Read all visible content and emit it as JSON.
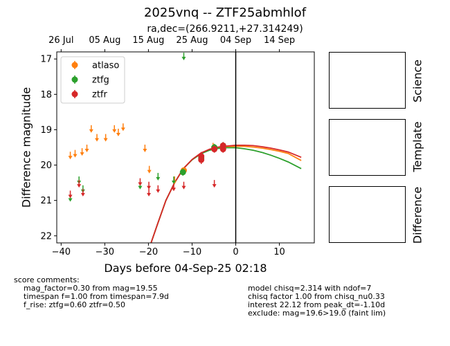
{
  "chart_data": {
    "type": "scatter",
    "title": "2025vnq -- ZTF25abmhlof",
    "subtitle": "ra,dec=(266.9211,+27.314249)",
    "xlabel": "Days before 04-Sep-25 02:18",
    "ylabel": "Difference magnitude",
    "xlim": [
      -41,
      18
    ],
    "ylim": [
      22.2,
      16.8
    ],
    "y_inverted": true,
    "x_ticks": [
      -40,
      -30,
      -20,
      -10,
      0,
      10
    ],
    "y_ticks": [
      17,
      18,
      19,
      20,
      21,
      22
    ],
    "top_axis": {
      "ticks": [
        {
          "x": -40,
          "label": "26 Jul"
        },
        {
          "x": -30,
          "label": "05 Aug"
        },
        {
          "x": -20,
          "label": "15 Aug"
        },
        {
          "x": -10,
          "label": "25 Aug"
        },
        {
          "x": 0,
          "label": "04 Sep"
        },
        {
          "x": 10,
          "label": "14 Sep"
        }
      ]
    },
    "vertical_line_x": 0,
    "legend": {
      "position": "top-left"
    },
    "colors": {
      "atlaso": "#ff7f0e",
      "ztfg": "#2ca02c",
      "ztfr": "#d62728"
    },
    "series": [
      {
        "name": "atlaso",
        "upper_limits": [
          [
            -37.9,
            19.7
          ],
          [
            -36.8,
            19.65
          ],
          [
            -35.2,
            19.6
          ],
          [
            -34.1,
            19.5
          ],
          [
            -33.1,
            18.95
          ],
          [
            -31.8,
            19.2
          ],
          [
            -29.8,
            19.2
          ],
          [
            -27.8,
            18.95
          ],
          [
            -26.9,
            19.05
          ],
          [
            -25.8,
            18.9
          ],
          [
            -20.8,
            19.5
          ],
          [
            -19.8,
            20.1
          ],
          [
            -14.0,
            20.4
          ],
          [
            -5.2,
            19.45
          ]
        ],
        "detections": [
          [
            -11.9,
            20.15,
            0.08
          ]
        ]
      },
      {
        "name": "ztfg",
        "upper_limits": [
          [
            -37.9,
            20.9
          ],
          [
            -35.9,
            20.4
          ],
          [
            -35.0,
            20.65
          ],
          [
            -21.9,
            20.55
          ],
          [
            -17.8,
            20.3
          ],
          [
            -14.2,
            20.4
          ],
          [
            -11.9,
            16.9
          ]
        ],
        "detections": [
          [
            -12.1,
            20.2,
            0.1
          ],
          [
            -7.9,
            19.8,
            0.1
          ],
          [
            -4.9,
            19.5,
            0.1
          ],
          [
            -2.9,
            19.45,
            0.1
          ]
        ]
      },
      {
        "name": "ztfr",
        "upper_limits": [
          [
            -37.9,
            20.8
          ],
          [
            -35.9,
            20.5
          ],
          [
            -35.0,
            20.75
          ],
          [
            -21.9,
            20.45
          ],
          [
            -19.9,
            20.55
          ],
          [
            -19.9,
            20.75
          ],
          [
            -17.8,
            20.65
          ],
          [
            -14.2,
            20.6
          ],
          [
            -11.9,
            20.55
          ],
          [
            -4.9,
            20.5
          ]
        ],
        "detections": [
          [
            -7.9,
            19.75,
            0.12
          ],
          [
            -7.9,
            19.85,
            0.12
          ],
          [
            -4.9,
            19.55,
            0.1
          ],
          [
            -2.9,
            19.45,
            0.1
          ],
          [
            -2.9,
            19.55,
            0.1
          ]
        ]
      }
    ],
    "model_curves": [
      {
        "name": "atlaso",
        "x": [
          -19.4,
          -18,
          -16,
          -14,
          -12,
          -10,
          -8,
          -6,
          -4,
          -2,
          0,
          2,
          4,
          6,
          8,
          10,
          12,
          15
        ],
        "y": [
          22.2,
          21.7,
          21.0,
          20.5,
          20.1,
          19.85,
          19.68,
          19.57,
          19.51,
          19.48,
          19.47,
          19.47,
          19.49,
          19.52,
          19.56,
          19.61,
          19.67,
          19.87
        ]
      },
      {
        "name": "ztfg",
        "x": [
          -19.4,
          -18,
          -16,
          -14,
          -12,
          -10,
          -8,
          -6,
          -4,
          -2,
          0,
          2,
          4,
          6,
          8,
          10,
          12,
          15
        ],
        "y": [
          22.2,
          21.7,
          21.0,
          20.5,
          20.1,
          19.85,
          19.68,
          19.58,
          19.53,
          19.51,
          19.51,
          19.54,
          19.58,
          19.64,
          19.72,
          19.81,
          19.91,
          20.1
        ]
      },
      {
        "name": "ztfr",
        "x": [
          -19.4,
          -18,
          -16,
          -14,
          -12,
          -10,
          -8,
          -6,
          -4,
          -2,
          0,
          2,
          4,
          6,
          8,
          10,
          12,
          15
        ],
        "y": [
          22.2,
          21.7,
          21.0,
          20.5,
          20.1,
          19.84,
          19.66,
          19.55,
          19.49,
          19.46,
          19.44,
          19.44,
          19.45,
          19.48,
          19.52,
          19.57,
          19.63,
          19.78
        ]
      }
    ]
  },
  "side_panels": [
    "Science",
    "Template",
    "Difference"
  ],
  "score_comments": {
    "heading": "score comments:",
    "left": [
      "mag_factor=0.30 from mag=19.55",
      "timespan f=1.00 from timespan=7.9d",
      "f_rise: ztfg=0.60 ztfr=0.50"
    ],
    "right": [
      "model chisq=2.314 with ndof=7",
      "chisq factor 1.00 from chisq_nu0.33",
      "interest 22.12 from peak_dt=-1.10d",
      "exclude: mag=19.6>19.0 (faint lim)"
    ]
  }
}
